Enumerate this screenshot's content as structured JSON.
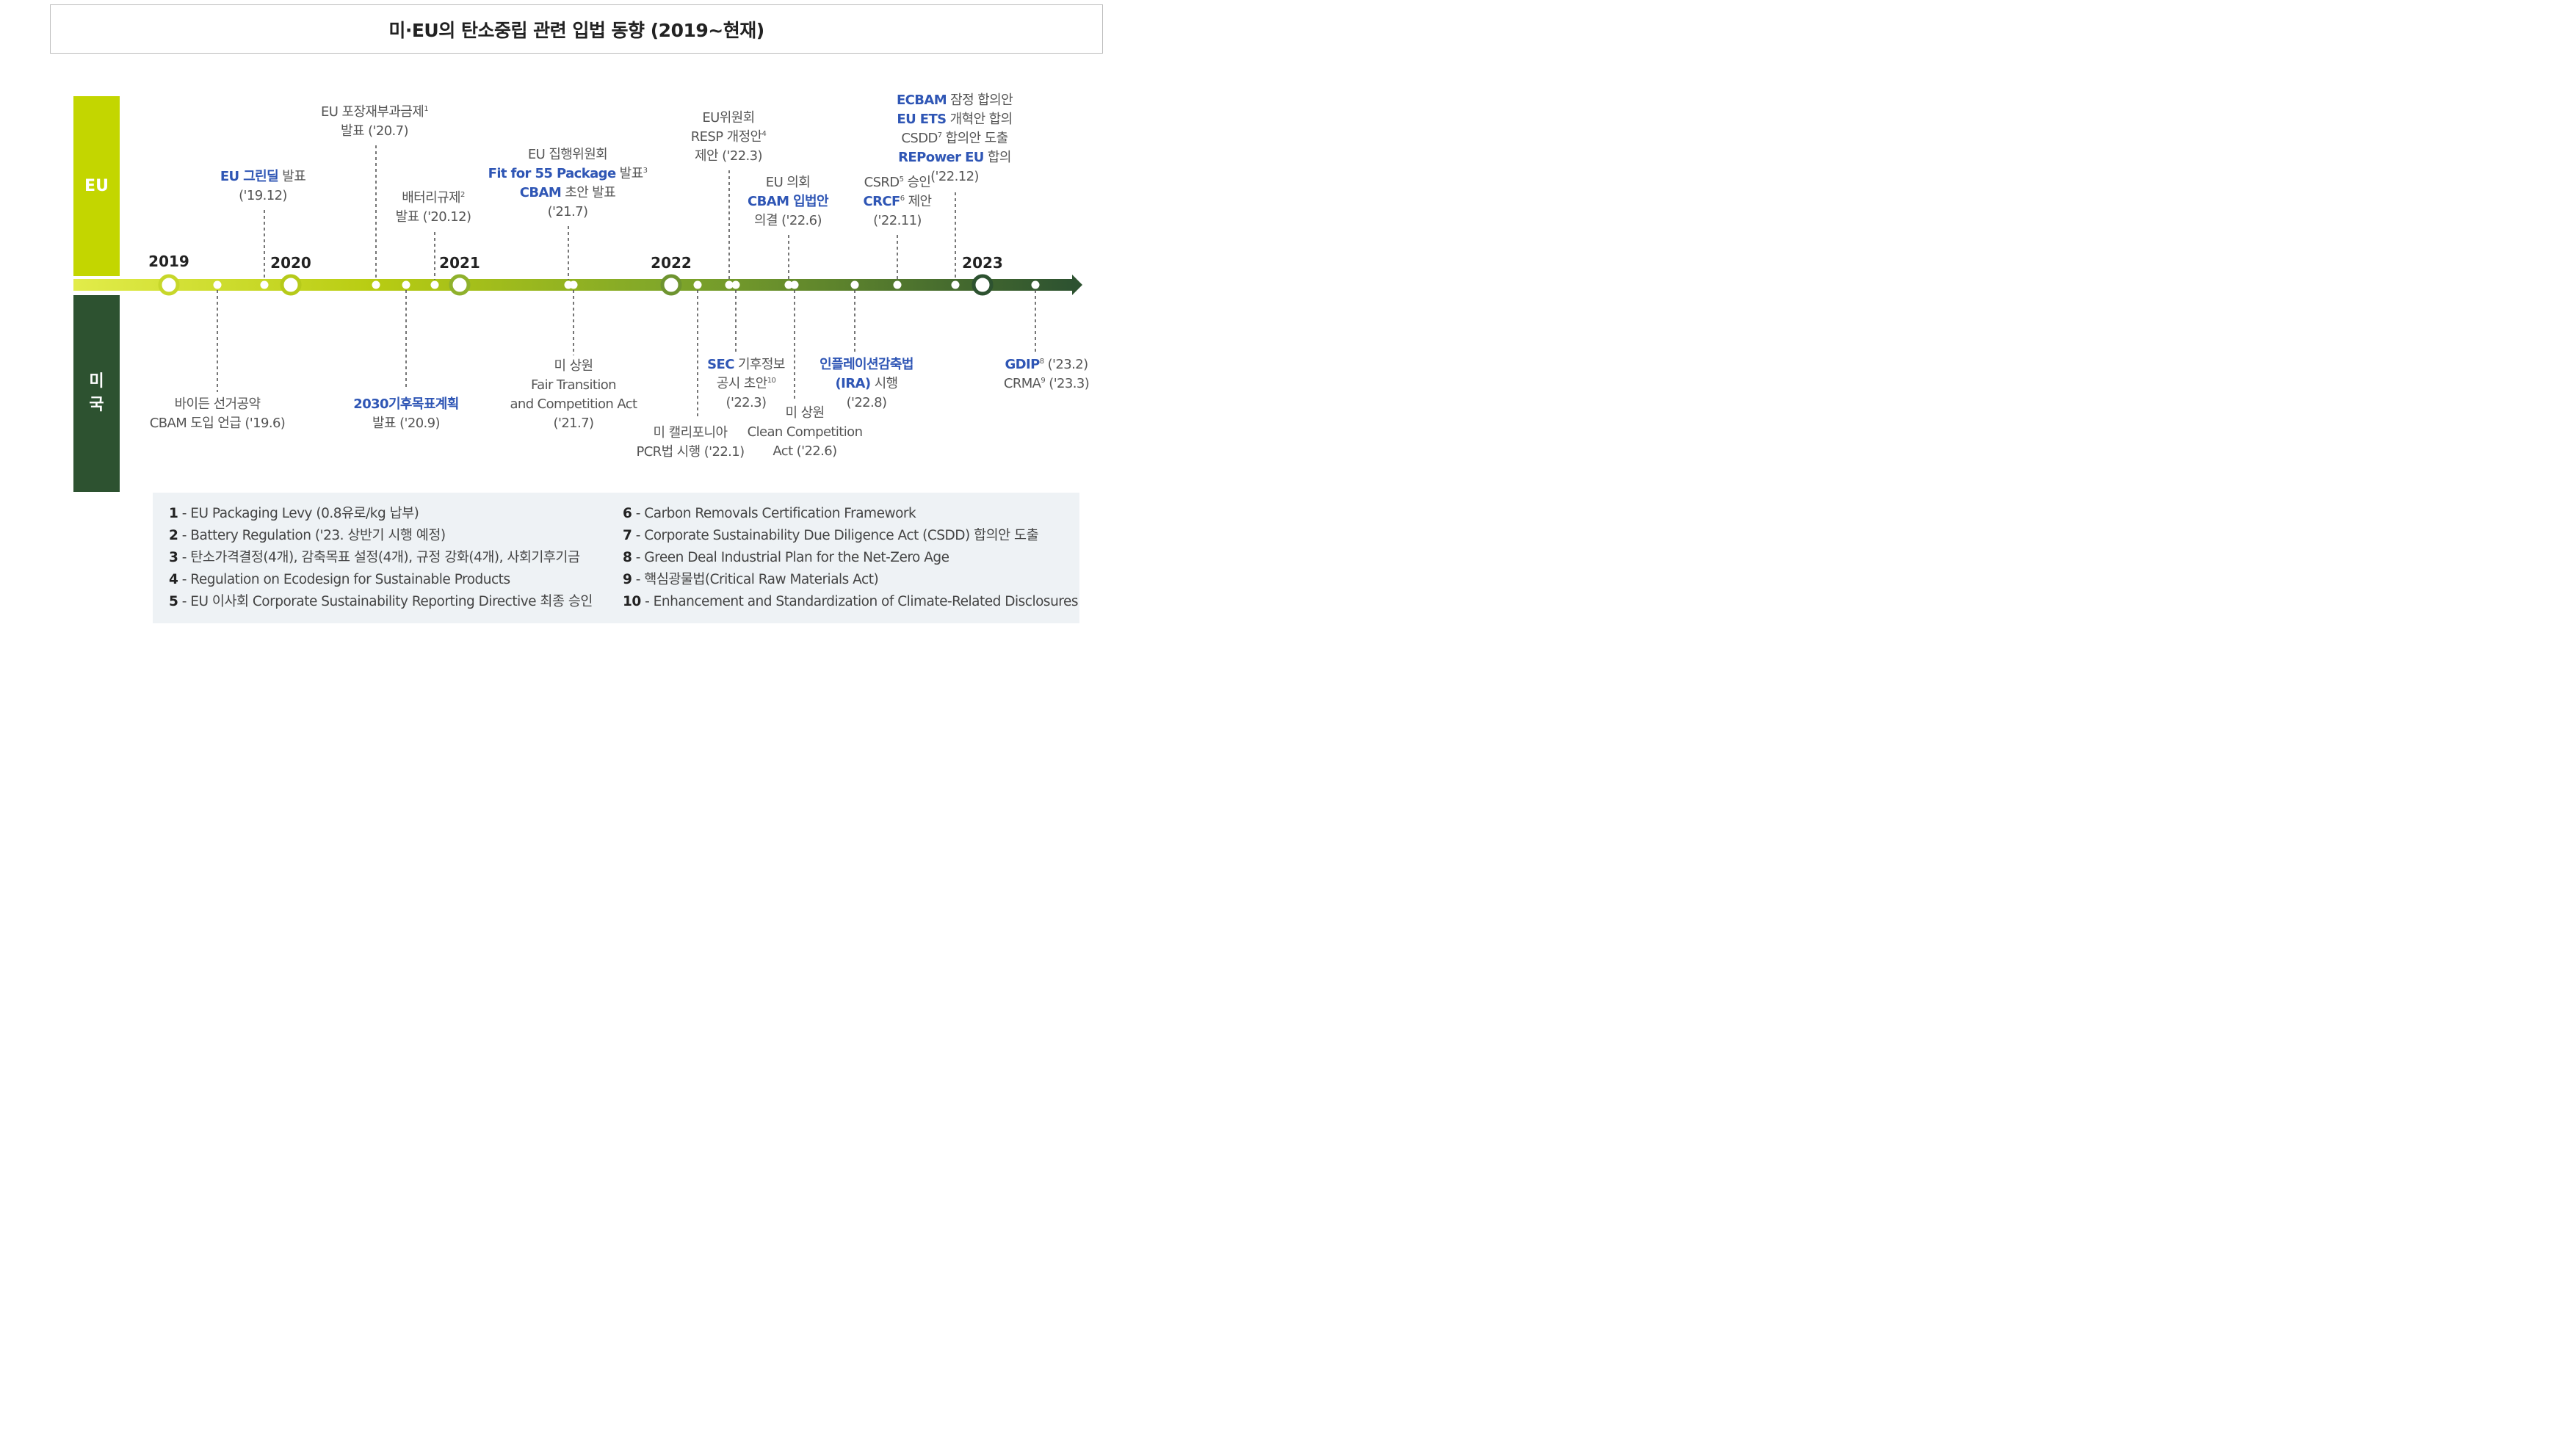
{
  "title": "미·EU의 탄소중립 관련 입법 동향 (2019~현재)",
  "bands": {
    "eu": "EU",
    "us": "미\n국"
  },
  "years": [
    "2019",
    "2020",
    "2021",
    "2022",
    "2023"
  ],
  "eu_events": [
    {
      "lines": [
        [
          [
            "EU 그린딜",
            "hl"
          ],
          [
            " 발표",
            ""
          ]
        ],
        [
          [
            "('19.12)",
            ""
          ]
        ]
      ]
    },
    {
      "lines": [
        [
          [
            "EU 포장재부과금제",
            ""
          ],
          [
            "1",
            "sup"
          ]
        ],
        [
          [
            "발표 ('20.7)",
            ""
          ]
        ]
      ]
    },
    {
      "lines": [
        [
          [
            "배터리규제",
            ""
          ],
          [
            "2",
            "sup"
          ]
        ],
        [
          [
            "발표 ('20.12)",
            ""
          ]
        ]
      ]
    },
    {
      "lines": [
        [
          [
            "EU 집행위원회",
            ""
          ]
        ],
        [
          [
            "Fit for 55 Package",
            "hl"
          ],
          [
            " 발표",
            ""
          ],
          [
            "3",
            "sup"
          ]
        ],
        [
          [
            "CBAM",
            "hl"
          ],
          [
            " 초안 발표",
            ""
          ]
        ],
        [
          [
            "('21.7)",
            ""
          ]
        ]
      ]
    },
    {
      "lines": [
        [
          [
            "EU위원회",
            ""
          ]
        ],
        [
          [
            "RESP 개정안",
            ""
          ],
          [
            "4",
            "sup"
          ]
        ],
        [
          [
            "제안 ('22.3)",
            ""
          ]
        ]
      ]
    },
    {
      "lines": [
        [
          [
            "EU 의회",
            ""
          ]
        ],
        [
          [
            "CBAM 입법안",
            "hl"
          ]
        ],
        [
          [
            "의결 ('22.6)",
            ""
          ]
        ]
      ]
    },
    {
      "lines": [
        [
          [
            "CSRD",
            ""
          ],
          [
            "5",
            "sup"
          ],
          [
            " 승인",
            ""
          ]
        ],
        [
          [
            "CRCF",
            "hl"
          ],
          [
            "6",
            "sup"
          ],
          [
            " 제안",
            ""
          ]
        ],
        [
          [
            "('22.11)",
            ""
          ]
        ]
      ]
    },
    {
      "lines": [
        [
          [
            "ECBAM",
            "hl"
          ],
          [
            " 잠정 합의안",
            ""
          ]
        ],
        [
          [
            "EU ETS",
            "hl"
          ],
          [
            " 개혁안 합의",
            ""
          ]
        ],
        [
          [
            "CSDD",
            ""
          ],
          [
            "7",
            "sup"
          ],
          [
            " 합의안 도출",
            ""
          ]
        ],
        [
          [
            "REPower EU",
            "hl"
          ],
          [
            " 합의",
            ""
          ]
        ],
        [
          [
            "('22.12)",
            ""
          ]
        ]
      ]
    }
  ],
  "us_events": [
    {
      "lines": [
        [
          [
            "바이든 선거공약",
            ""
          ]
        ],
        [
          [
            "CBAM 도입 언급 ('19.6)",
            ""
          ]
        ]
      ]
    },
    {
      "lines": [
        [
          [
            "2030기후목표계획",
            "hl"
          ]
        ],
        [
          [
            "발표 ('20.9)",
            ""
          ]
        ]
      ]
    },
    {
      "lines": [
        [
          [
            "미 상원",
            ""
          ]
        ],
        [
          [
            "Fair Transition",
            ""
          ]
        ],
        [
          [
            "and Competition Act",
            ""
          ]
        ],
        [
          [
            "('21.7)",
            ""
          ]
        ]
      ]
    },
    {
      "lines": [
        [
          [
            "미 캘리포니아",
            ""
          ]
        ],
        [
          [
            "PCR법 시행 ('22.1)",
            ""
          ]
        ]
      ]
    },
    {
      "lines": [
        [
          [
            "SEC",
            "hl"
          ],
          [
            " 기후정보",
            ""
          ]
        ],
        [
          [
            "공시 초안",
            ""
          ],
          [
            "10",
            "sup"
          ]
        ],
        [
          [
            "('22.3)",
            ""
          ]
        ]
      ]
    },
    {
      "lines": [
        [
          [
            "미 상원",
            ""
          ]
        ],
        [
          [
            "Clean Competition",
            ""
          ]
        ],
        [
          [
            "Act ('22.6)",
            ""
          ]
        ]
      ]
    },
    {
      "lines": [
        [
          [
            "인플레이션감축법",
            "hl"
          ]
        ],
        [
          [
            "(IRA)",
            "hl"
          ],
          [
            " 시행",
            ""
          ]
        ],
        [
          [
            "('22.8)",
            ""
          ]
        ]
      ]
    },
    {
      "lines": [
        [
          [
            "GDIP",
            "hl"
          ],
          [
            "8",
            "sup"
          ],
          [
            " ('23.2)",
            ""
          ]
        ],
        [
          [
            "CRMA",
            ""
          ],
          [
            "9",
            "sup"
          ],
          [
            " ('23.3)",
            ""
          ]
        ]
      ]
    }
  ],
  "footnotes_left": [
    {
      "num": "1",
      "text": " - EU Packaging Levy (0.8유로/kg 납부)"
    },
    {
      "num": "2",
      "text": " - Battery Regulation ('23. 상반기 시행 예정)"
    },
    {
      "num": "3",
      "text": " - 탄소가격결정(4개), 감축목표 설정(4개), 규정 강화(4개), 사회기후기금"
    },
    {
      "num": "4",
      "text": " - Regulation on Ecodesign for Sustainable Products"
    },
    {
      "num": "5",
      "text": " - EU 이사회 Corporate Sustainability Reporting Directive 최종 승인"
    }
  ],
  "footnotes_right": [
    {
      "num": "6",
      "text": " - Carbon Removals Certification Framework"
    },
    {
      "num": "7",
      "text": " - Corporate Sustainability Due Diligence Act (CSDD) 합의안 도출"
    },
    {
      "num": "8",
      "text": " - Green Deal Industrial Plan for the Net-Zero Age"
    },
    {
      "num": "9",
      "text": " - 핵심광물법(Critical Raw Materials Act)"
    },
    {
      "num": "10",
      "text": " - Enhancement and Standardization of Climate-Related Disclosures"
    }
  ],
  "colors": {
    "eu_band": "#c3d600",
    "us_band": "#2d5230",
    "highlight": "#2f56b5",
    "arrow_start": "#d4e000",
    "arrow_end": "#2d5230"
  }
}
